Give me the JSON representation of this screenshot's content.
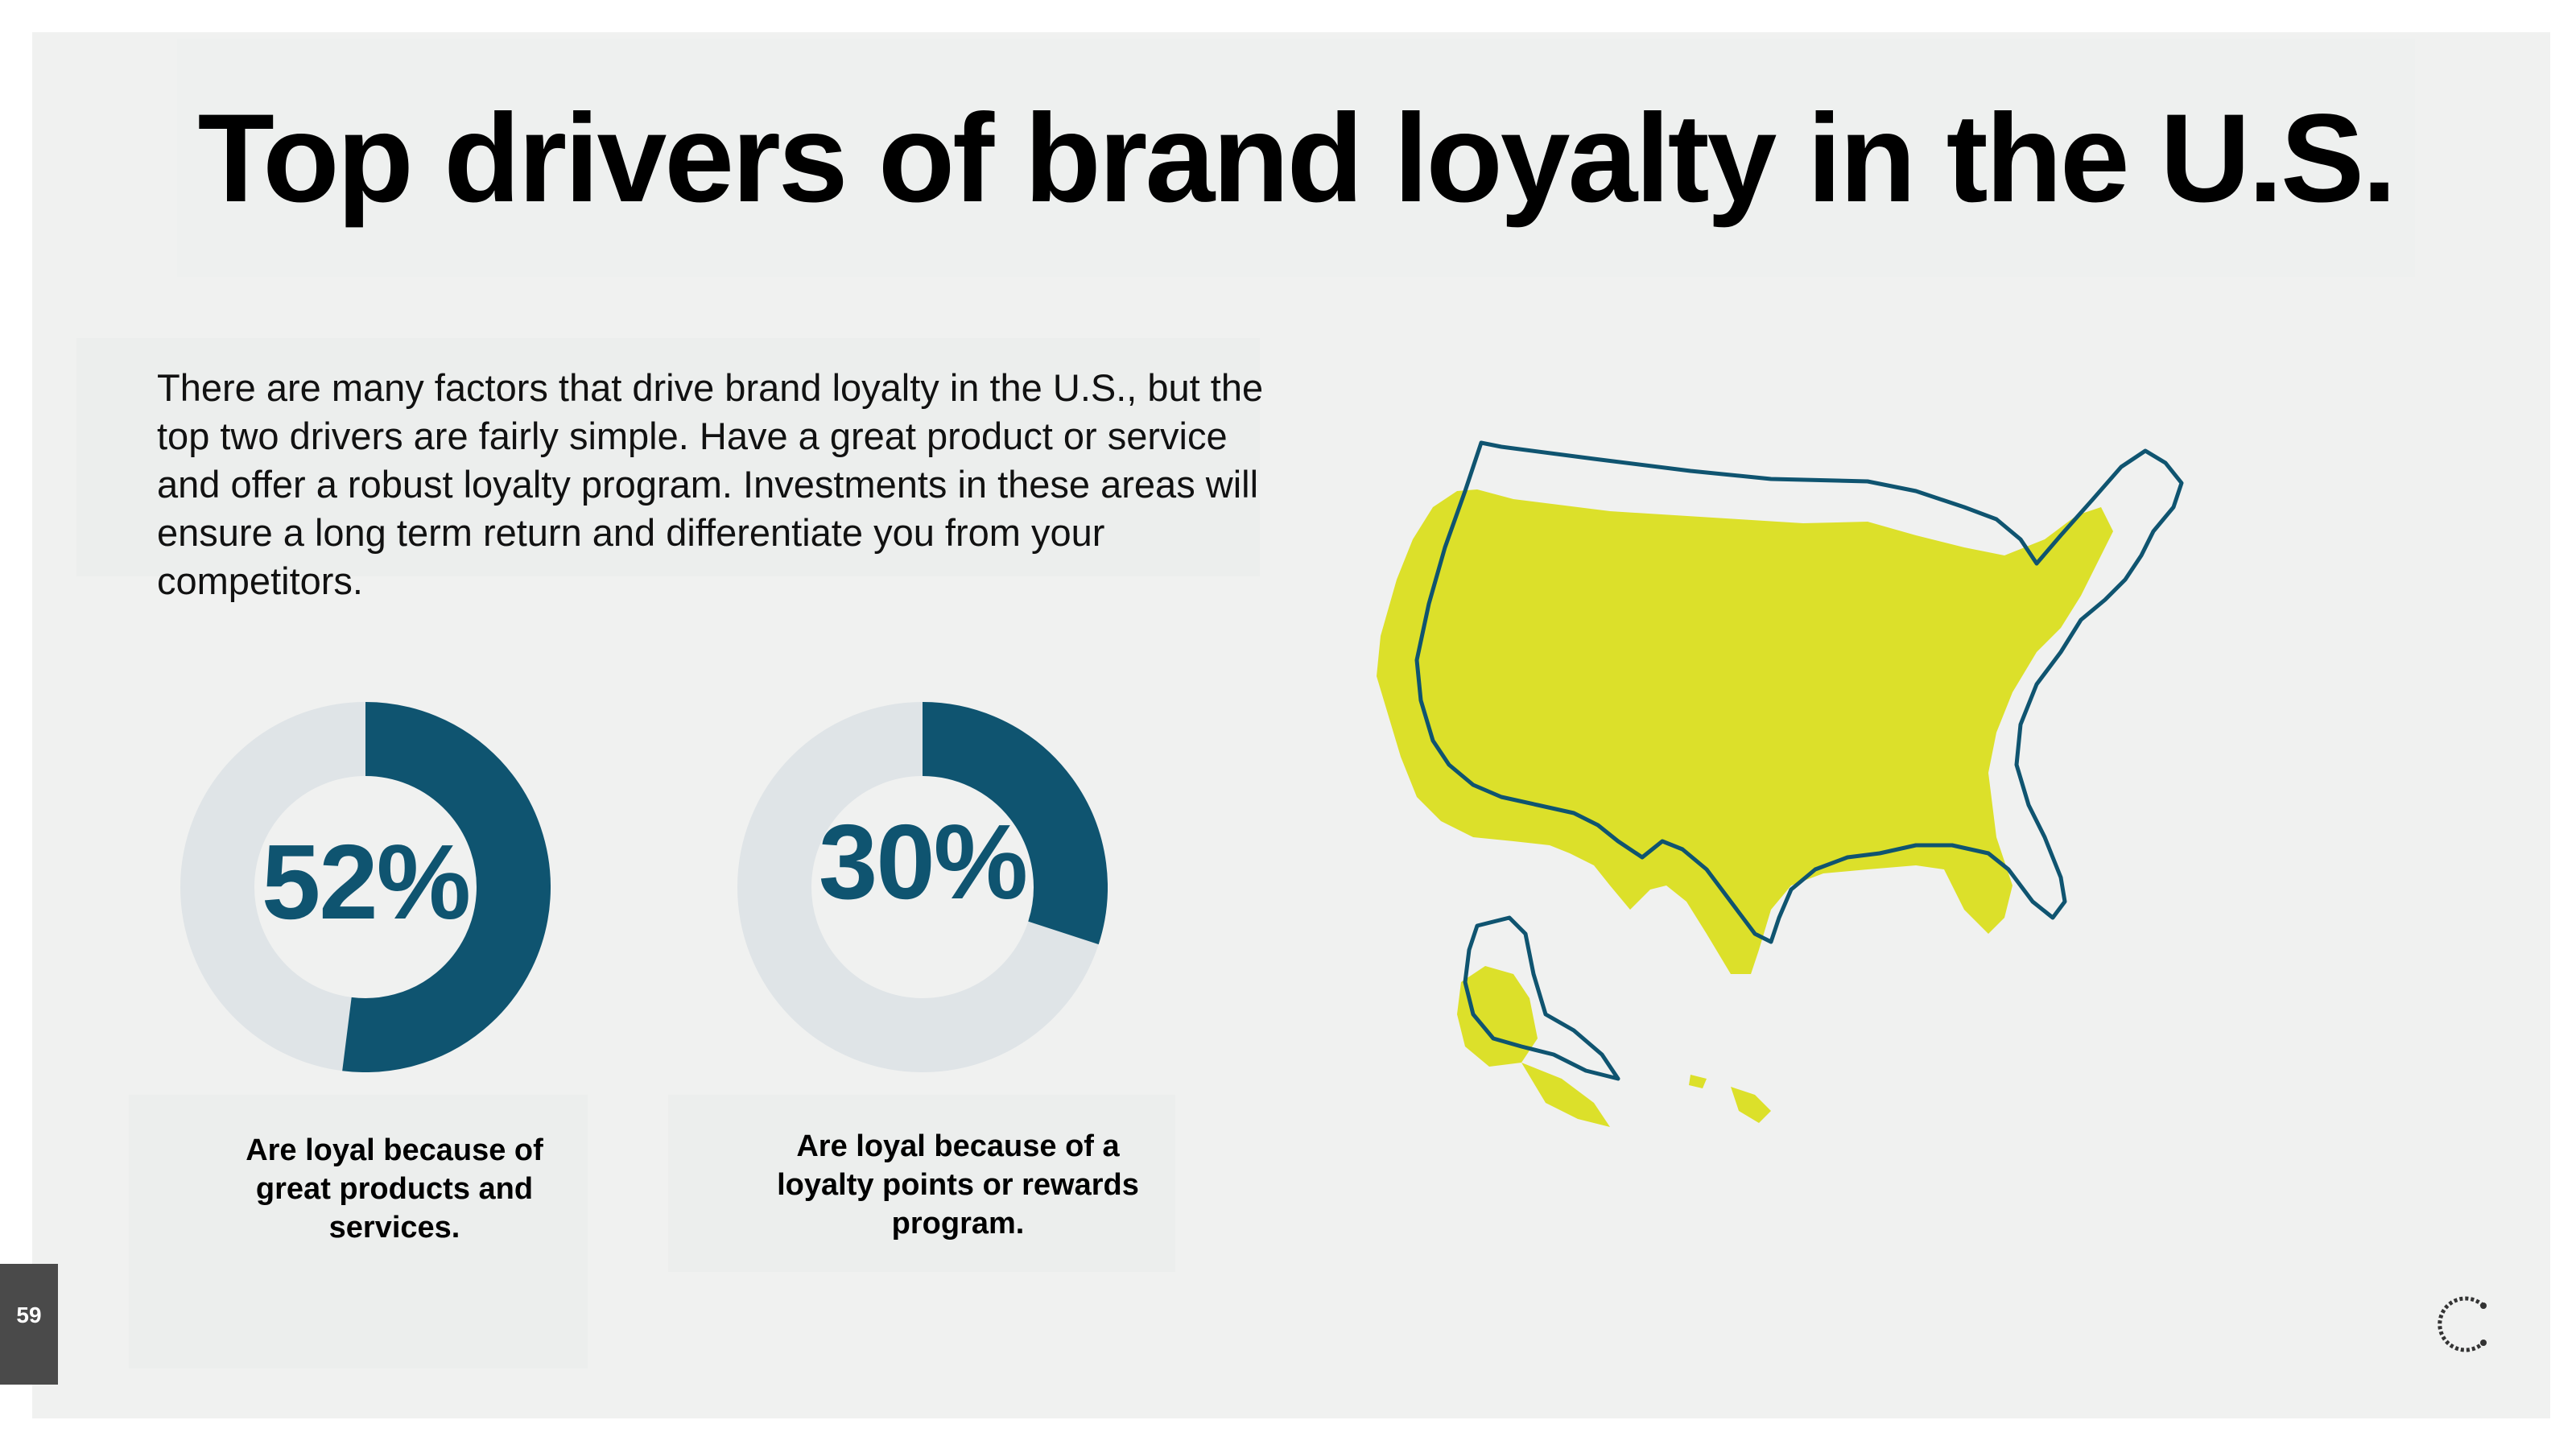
{
  "title": "Top drivers of brand loyalty in the U.S.",
  "intro": "There are many factors that drive brand loyalty in the U.S., but the top two drivers are fairly simple. Have a great product or service and offer a robust loyalty program. Investments in these areas will ensure a long term return and differentiate you from your competitors.",
  "page_number": "59",
  "colors": {
    "accent": "#0f5470",
    "track": "#dfe4e7",
    "map_fill": "#dce02a",
    "background": "#f0f1f0"
  },
  "chart_data": [
    {
      "type": "pie",
      "style": "donut",
      "value": 52,
      "unit": "%",
      "label": "52%",
      "caption": "Are loyal because of great products and services."
    },
    {
      "type": "pie",
      "style": "donut",
      "value": 30,
      "unit": "%",
      "label": "30%",
      "caption": "Are loyal because of a loyalty points or rewards program."
    }
  ],
  "map": {
    "subject": "United States",
    "fill_color": "#dce02a",
    "outline_color": "#0f5470"
  },
  "logo": "brand-c-logo-icon"
}
